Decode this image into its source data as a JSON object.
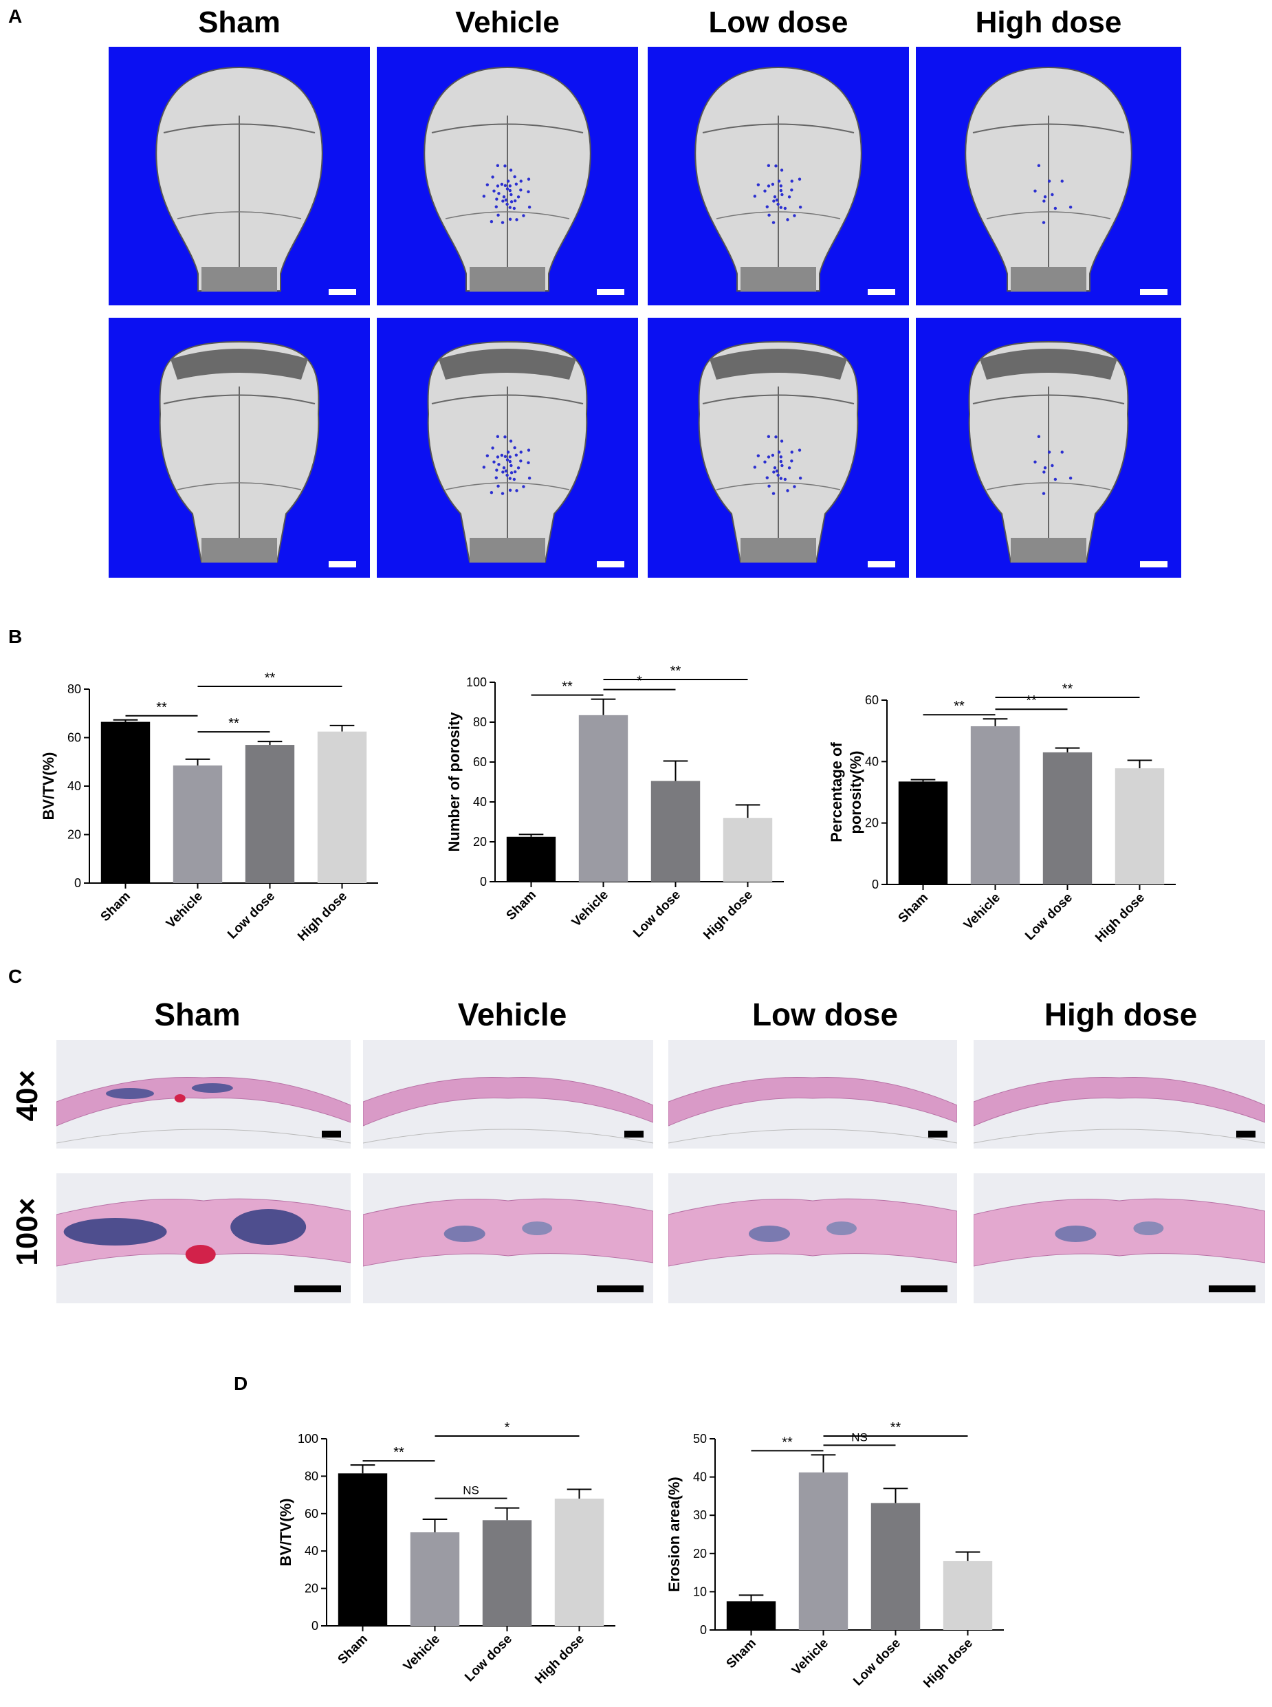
{
  "panels": {
    "a": {
      "letter": "A",
      "columns": [
        "Sham",
        "Vehicle",
        "Low dose",
        "High dose"
      ]
    },
    "b": {
      "letter": "B"
    },
    "c": {
      "letter": "C",
      "columns": [
        "Sham",
        "Vehicle",
        "Low dose",
        "High dose"
      ],
      "rows": [
        "40×",
        "100×"
      ]
    },
    "d": {
      "letter": "D"
    }
  },
  "colors": {
    "sham": "#000000",
    "vehicle": "#9b9ba3",
    "low": "#7a7a7e",
    "high": "#d4d4d4",
    "ct_background": "#0b10f2"
  },
  "chart_data": [
    {
      "id": "B1",
      "type": "bar",
      "ylabel": "BV/TV(%)",
      "categories": [
        "Sham",
        "Vehicle",
        "Low dose",
        "High dose"
      ],
      "values": [
        66.5,
        48.5,
        57,
        62.5
      ],
      "errors": [
        0.8,
        2.6,
        1.4,
        2.5
      ],
      "ylim": [
        0,
        80
      ],
      "yticks": [
        0,
        20,
        40,
        60,
        80
      ],
      "annotations": [
        {
          "from": 0,
          "to": 1,
          "label": "**",
          "level": 0
        },
        {
          "from": 1,
          "to": 2,
          "label": "**",
          "level": 0
        },
        {
          "from": 1,
          "to": 3,
          "label": "**",
          "level": 1
        }
      ]
    },
    {
      "id": "B2",
      "type": "bar",
      "ylabel": "Number of porosity",
      "categories": [
        "Sham",
        "Vehicle",
        "Low dose",
        "High dose"
      ],
      "values": [
        22.5,
        83.5,
        50.5,
        32
      ],
      "errors": [
        1.2,
        8,
        10,
        6.5
      ],
      "ylim": [
        0,
        100
      ],
      "yticks": [
        0,
        20,
        40,
        60,
        80,
        100
      ],
      "annotations": [
        {
          "from": 0,
          "to": 1,
          "label": "**",
          "level": 0
        },
        {
          "from": 1,
          "to": 2,
          "label": "*",
          "level": 0
        },
        {
          "from": 1,
          "to": 3,
          "label": "**",
          "level": 1
        }
      ]
    },
    {
      "id": "B3",
      "type": "bar",
      "ylabel": "Percentage of porosity(%)",
      "categories": [
        "Sham",
        "Vehicle",
        "Low dose",
        "High dose"
      ],
      "values": [
        33.5,
        51.5,
        43,
        37.8
      ],
      "errors": [
        0.6,
        2.4,
        1.4,
        2.6
      ],
      "ylim": [
        0,
        60
      ],
      "yticks": [
        0,
        20,
        40,
        60
      ],
      "annotations": [
        {
          "from": 0,
          "to": 1,
          "label": "**",
          "level": 0
        },
        {
          "from": 1,
          "to": 2,
          "label": "**",
          "level": 0
        },
        {
          "from": 1,
          "to": 3,
          "label": "**",
          "level": 1
        }
      ]
    },
    {
      "id": "D1",
      "type": "bar",
      "ylabel": "BV/TV(%)",
      "categories": [
        "Sham",
        "Vehicle",
        "Low dose",
        "High dose"
      ],
      "values": [
        81.5,
        50,
        56.5,
        68
      ],
      "errors": [
        4.5,
        7,
        6.5,
        5
      ],
      "ylim": [
        0,
        100
      ],
      "yticks": [
        0,
        20,
        40,
        60,
        80,
        100
      ],
      "annotations": [
        {
          "from": 0,
          "to": 1,
          "label": "**",
          "level": 0
        },
        {
          "from": 1,
          "to": 2,
          "label": "NS",
          "level": 0
        },
        {
          "from": 1,
          "to": 3,
          "label": "*",
          "level": 1
        }
      ]
    },
    {
      "id": "D2",
      "type": "bar",
      "ylabel": "Erosion area(%)",
      "categories": [
        "Sham",
        "Vehicle",
        "Low dose",
        "High dose"
      ],
      "values": [
        7.5,
        41.2,
        33.2,
        18
      ],
      "errors": [
        1.6,
        4.6,
        3.8,
        2.4
      ],
      "ylim": [
        0,
        50
      ],
      "yticks": [
        0,
        10,
        20,
        30,
        40,
        50
      ],
      "annotations": [
        {
          "from": 0,
          "to": 1,
          "label": "**",
          "level": 0
        },
        {
          "from": 1,
          "to": 2,
          "label": "NS",
          "level": 0
        },
        {
          "from": 1,
          "to": 3,
          "label": "**",
          "level": 1
        }
      ]
    }
  ]
}
